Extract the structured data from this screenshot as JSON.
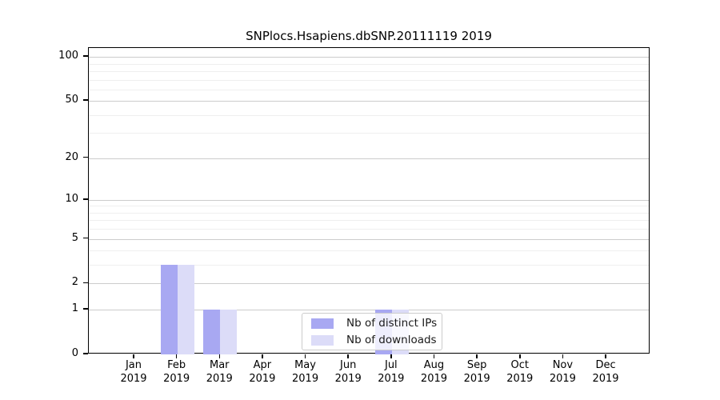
{
  "figure": {
    "title": "SNPlocs.Hsapiens.dbSNP.20111119 2019"
  },
  "chart_data": {
    "type": "bar",
    "title": "SNPlocs.Hsapiens.dbSNP.20111119 2019",
    "categories": [
      "Jan",
      "Feb",
      "Mar",
      "Apr",
      "May",
      "Jun",
      "Jul",
      "Aug",
      "Sep",
      "Oct",
      "Nov",
      "Dec"
    ],
    "year_label": "2019",
    "series": [
      {
        "name": "Nb of distinct IPs",
        "color": "#a8a8f2",
        "values": [
          0,
          3,
          1,
          0,
          0,
          0,
          1,
          0,
          0,
          0,
          0,
          0
        ]
      },
      {
        "name": "Nb of downloads",
        "color": "#dcdcf8",
        "values": [
          0,
          3,
          1,
          0,
          0,
          0,
          1,
          0,
          0,
          0,
          0,
          0
        ]
      }
    ],
    "xlabel": "",
    "ylabel": "",
    "y_scale": "log1p",
    "ylim": [
      0,
      115
    ],
    "y_major_ticks": [
      0,
      1,
      2,
      5,
      10,
      20,
      50,
      100
    ],
    "y_minor_gridlines": [
      3,
      4,
      6,
      7,
      8,
      9,
      30,
      40,
      60,
      70,
      80,
      90
    ],
    "grid": true,
    "legend_position": "lower center",
    "colors": {
      "bar_distinct_ips": "#a8a8f2",
      "bar_downloads": "#dcdcf8",
      "grid_major": "#cccccc",
      "grid_minor": "#efefef",
      "axis": "#000000",
      "legend_border": "#cccccc"
    }
  }
}
